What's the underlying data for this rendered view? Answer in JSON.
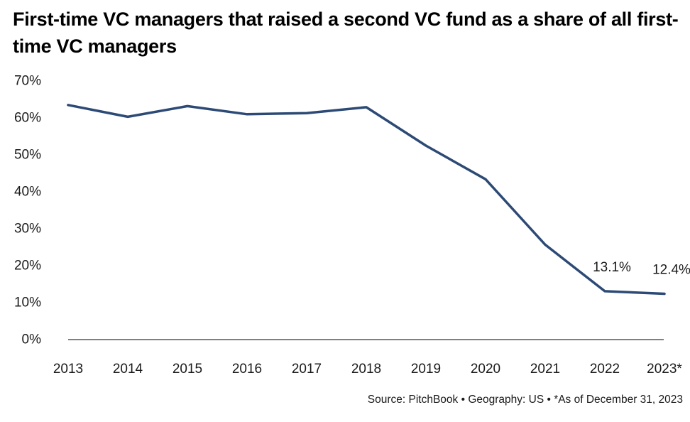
{
  "title": "First-time VC managers that raised a second VC fund as a share of all first-time VC managers",
  "footer": {
    "source": "Source: PitchBook  •  Geography: US  •  *As of December 31, 2023"
  },
  "colors": {
    "line": "#2c4a75",
    "axis": "#000000",
    "text": "#1a1a1a"
  },
  "chart_data": {
    "type": "line",
    "title": "First-time VC managers that raised a second VC fund as a share of all first-time VC managers",
    "xlabel": "",
    "ylabel": "",
    "categories": [
      "2013",
      "2014",
      "2015",
      "2016",
      "2017",
      "2018",
      "2019",
      "2020",
      "2021",
      "2022",
      "2023*"
    ],
    "series": [
      {
        "values": [
          63.5,
          60.3,
          63.2,
          61.0,
          61.3,
          62.9,
          52.5,
          43.4,
          25.7,
          13.1,
          12.4
        ]
      }
    ],
    "data_labels": [
      {
        "index": 9,
        "text": "13.1%"
      },
      {
        "index": 10,
        "text": "12.4%"
      }
    ],
    "ylim": [
      0,
      70
    ],
    "yticks": [
      0,
      10,
      20,
      30,
      40,
      50,
      60,
      70
    ],
    "ytick_labels": [
      "0%",
      "10%",
      "20%",
      "30%",
      "40%",
      "50%",
      "60%",
      "70%"
    ],
    "grid": false,
    "legend": "none"
  }
}
